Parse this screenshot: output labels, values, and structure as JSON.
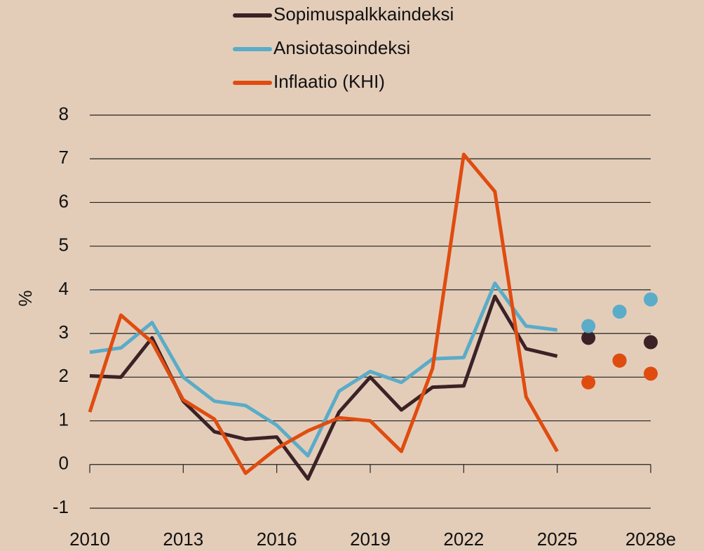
{
  "chart_data": {
    "type": "line",
    "y_label": "%",
    "x": [
      2010,
      2011,
      2012,
      2013,
      2014,
      2015,
      2016,
      2017,
      2018,
      2019,
      2020,
      2021,
      2022,
      2023,
      2024,
      2025
    ],
    "forecast_x": [
      2026,
      2027,
      2028
    ],
    "series": [
      {
        "name": "Sopimuspalkkaindeksi",
        "color": "#3b2226",
        "values": [
          2.03,
          2.0,
          2.9,
          1.45,
          0.75,
          0.58,
          0.63,
          -0.33,
          1.2,
          2.0,
          1.25,
          1.77,
          1.8,
          3.85,
          2.65,
          2.48
        ],
        "forecast": [
          2.9,
          2.38,
          2.8
        ]
      },
      {
        "name": "Ansiotasoindeksi",
        "color": "#5aacc8",
        "values": [
          2.57,
          2.67,
          3.25,
          2.0,
          1.45,
          1.35,
          0.9,
          0.2,
          1.68,
          2.13,
          1.88,
          2.42,
          2.45,
          4.15,
          3.17,
          3.08
        ],
        "forecast": [
          3.17,
          3.5,
          3.78
        ]
      },
      {
        "name": "Inflaatio (KHI)",
        "color": "#e04c10",
        "values": [
          1.2,
          3.42,
          2.8,
          1.48,
          1.04,
          -0.2,
          0.37,
          0.77,
          1.07,
          1.0,
          0.3,
          2.2,
          7.1,
          6.25,
          1.55,
          0.3
        ],
        "forecast": [
          1.88,
          2.38,
          2.08
        ]
      }
    ],
    "xlim": [
      2010,
      2028
    ],
    "xticks": [
      2010,
      2013,
      2016,
      2019,
      2022,
      2025,
      {
        "value": 2028,
        "label": "2028e"
      }
    ],
    "ylim": [
      -1,
      8
    ],
    "yticks": [
      -1,
      0,
      1,
      2,
      3,
      4,
      5,
      6,
      7,
      8
    ],
    "grid": true,
    "legend": "top"
  }
}
